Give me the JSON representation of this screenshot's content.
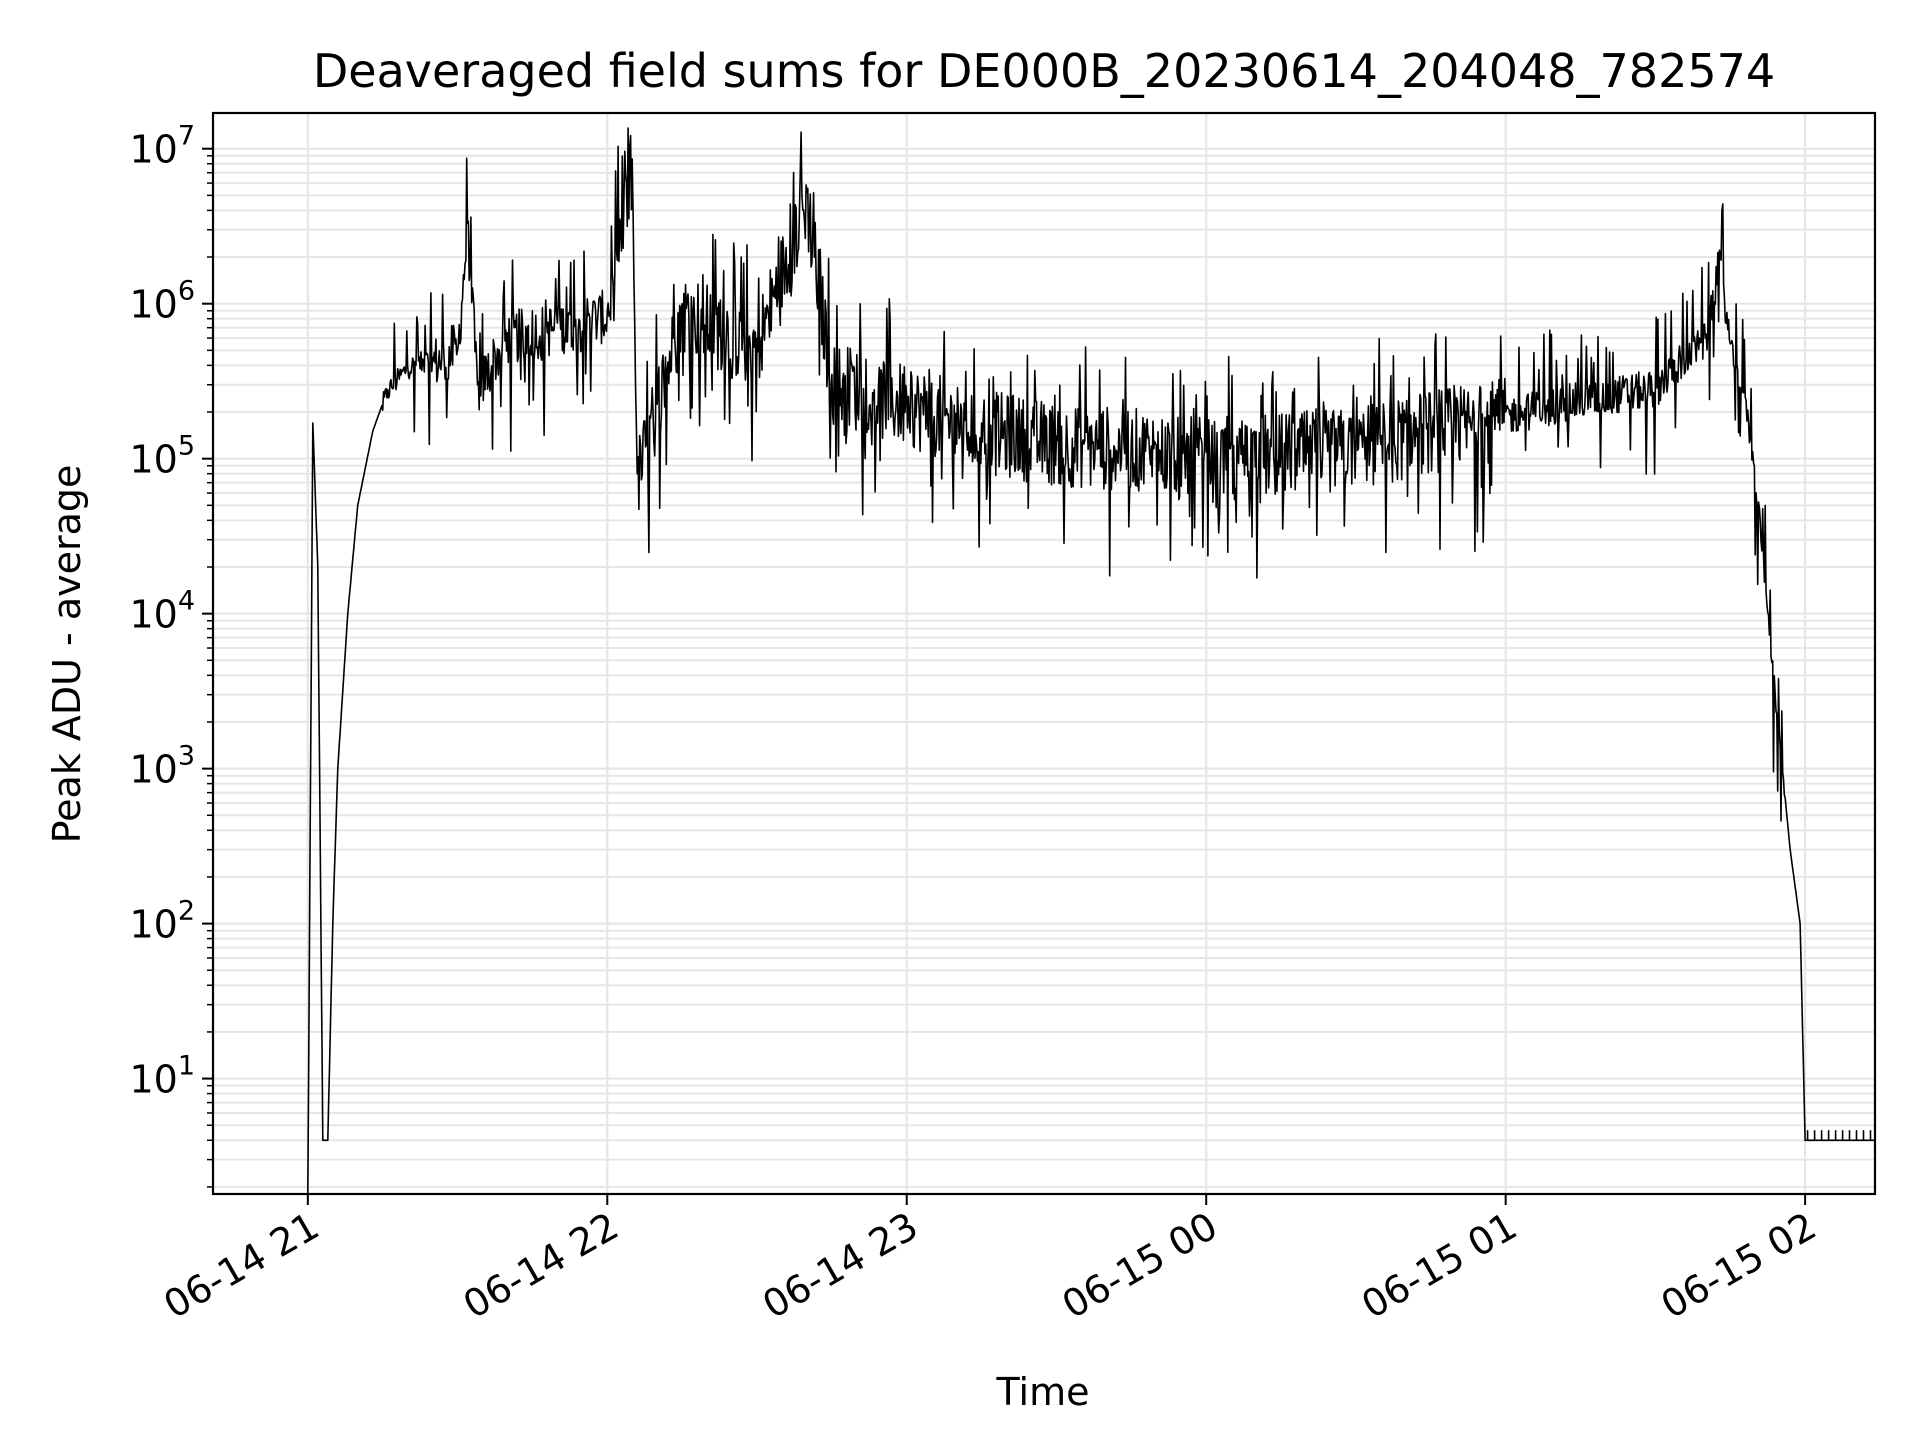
{
  "chart_data": {
    "type": "line",
    "title": "Deaveraged field sums for DE000B_20230614_204048_782574",
    "xlabel": "Time",
    "ylabel": "Peak ADU - average",
    "yscale": "log",
    "grid": true,
    "line_color": "#000000",
    "grid_color": "#e6e6e6",
    "x_ticks": [
      "06-14 21",
      "06-14 22",
      "06-14 23",
      "06-15 00",
      "06-15 01",
      "06-15 02"
    ],
    "y_ticks": [
      {
        "base": "10",
        "exp": "1",
        "value": 10
      },
      {
        "base": "10",
        "exp": "2",
        "value": 100
      },
      {
        "base": "10",
        "exp": "3",
        "value": 1000
      },
      {
        "base": "10",
        "exp": "4",
        "value": 10000
      },
      {
        "base": "10",
        "exp": "5",
        "value": 100000
      },
      {
        "base": "10",
        "exp": "6",
        "value": 1000000
      },
      {
        "base": "10",
        "exp": "7",
        "value": 10000000
      }
    ],
    "xlim": [
      "2023-06-14 20:41",
      "2023-06-15 02:14"
    ],
    "ylim": [
      1.8,
      17000000
    ],
    "series": [
      {
        "points": [
          [
            "2023-06-14 21:00",
            1.8
          ],
          [
            "2023-06-14 21:01",
            170000
          ],
          [
            "2023-06-14 21:02",
            20000
          ],
          [
            "2023-06-14 21:03",
            4
          ],
          [
            "2023-06-14 21:04",
            4
          ],
          [
            "2023-06-14 21:05",
            100
          ],
          [
            "2023-06-14 21:06",
            1000
          ],
          [
            "2023-06-14 21:08",
            10000
          ],
          [
            "2023-06-14 21:10",
            50000
          ],
          [
            "2023-06-14 21:13",
            150000
          ],
          [
            "2023-06-14 21:16",
            280000
          ],
          [
            "2023-06-14 21:20",
            400000
          ],
          [
            "2023-06-14 21:25",
            450000
          ],
          [
            "2023-06-14 21:30",
            500000
          ],
          [
            "2023-06-14 21:32",
            3300000
          ],
          [
            "2023-06-14 21:34",
            300000
          ],
          [
            "2023-06-14 21:40",
            650000
          ],
          [
            "2023-06-14 21:50",
            750000
          ],
          [
            "2023-06-14 22:00",
            900000
          ],
          [
            "2023-06-14 22:05",
            8600000
          ],
          [
            "2023-06-14 22:06",
            80000
          ],
          [
            "2023-06-14 22:15",
            1000000
          ],
          [
            "2023-06-14 22:30",
            600000
          ],
          [
            "2023-06-14 22:40",
            5200000
          ],
          [
            "2023-06-14 22:45",
            350000
          ],
          [
            "2023-06-14 23:00",
            250000
          ],
          [
            "2023-06-14 23:15",
            170000
          ],
          [
            "2023-06-14 23:30",
            140000
          ],
          [
            "2023-06-14 23:45",
            130000
          ],
          [
            "2023-06-15 00:00",
            110000
          ],
          [
            "2023-06-15 00:15",
            120000
          ],
          [
            "2023-06-15 00:30",
            130000
          ],
          [
            "2023-06-15 00:45",
            170000
          ],
          [
            "2023-06-15 01:00",
            200000
          ],
          [
            "2023-06-15 01:15",
            250000
          ],
          [
            "2023-06-15 01:30",
            300000
          ],
          [
            "2023-06-15 01:35",
            450000
          ],
          [
            "2023-06-15 01:40",
            600000
          ],
          [
            "2023-06-15 01:43",
            2100000
          ],
          [
            "2023-06-15 01:45",
            550000
          ],
          [
            "2023-06-15 01:48",
            250000
          ],
          [
            "2023-06-15 01:51",
            40000
          ],
          [
            "2023-06-15 01:54",
            3000
          ],
          [
            "2023-06-15 01:57",
            300
          ],
          [
            "2023-06-15 01:59",
            100
          ],
          [
            "2023-06-15 02:00",
            4
          ],
          [
            "2023-06-15 02:14",
            4
          ]
        ]
      }
    ]
  }
}
